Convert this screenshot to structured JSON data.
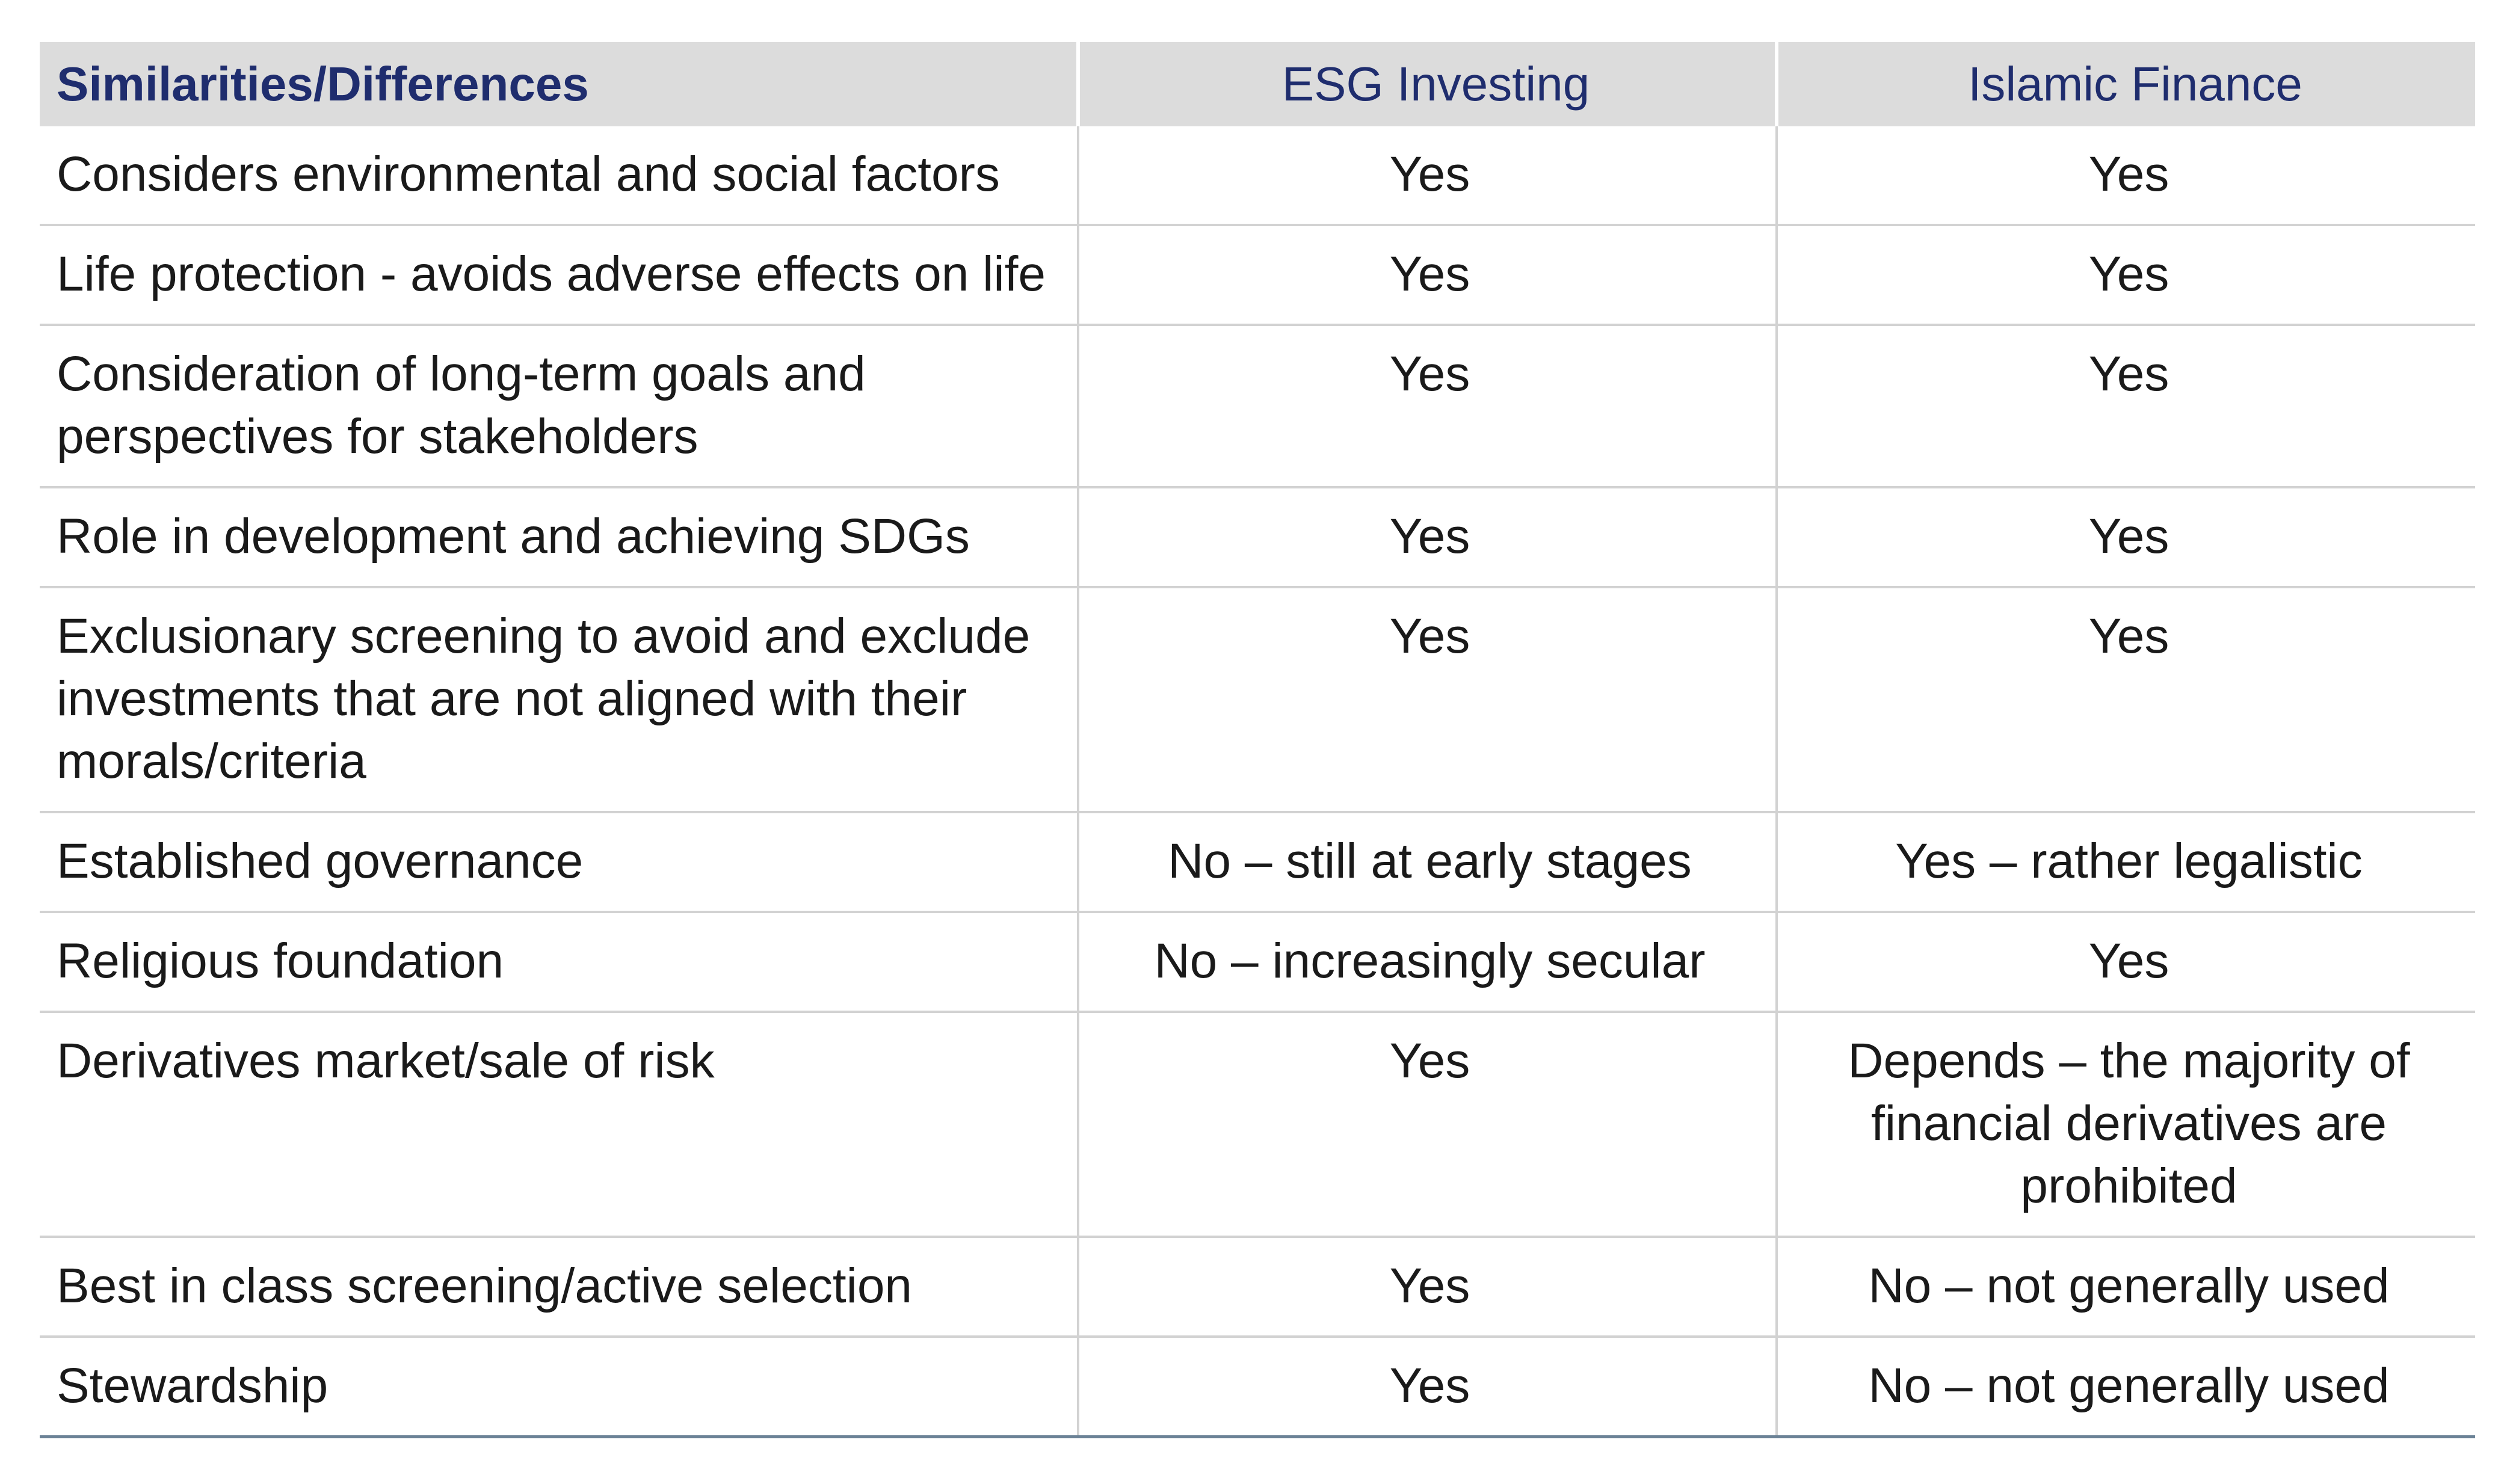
{
  "table": {
    "headers": [
      "Similarities/Differences",
      "ESG Investing",
      "Islamic Finance"
    ],
    "rows": [
      [
        "Considers environmental and social factors",
        "Yes",
        "Yes"
      ],
      [
        "Life protection - avoids adverse effects on life",
        "Yes",
        "Yes"
      ],
      [
        "Consideration of long-term goals and perspectives for stakeholders",
        "Yes",
        "Yes"
      ],
      [
        "Role in development and achieving SDGs",
        "Yes",
        "Yes"
      ],
      [
        "Exclusionary screening to avoid and exclude investments that are not aligned with their morals/criteria",
        "Yes",
        "Yes"
      ],
      [
        "Established governance",
        "No – still at early stages",
        "Yes – rather legalistic"
      ],
      [
        "Religious foundation",
        "No – increasingly secular",
        "Yes"
      ],
      [
        "Derivatives market/sale of risk",
        "Yes",
        "Depends – the majority of financial derivatives are prohibited"
      ],
      [
        "Best in class screening/active selection",
        "Yes",
        "No – not generally used"
      ],
      [
        "Stewardship",
        "Yes",
        "No – not generally used"
      ]
    ]
  },
  "colors": {
    "header_background": "#dcdcdc",
    "header_text": "#1f2d6e",
    "body_text": "#1a1a1a",
    "grid_lines": "#d2d2d2",
    "bottom_rule": "#6b8296"
  }
}
